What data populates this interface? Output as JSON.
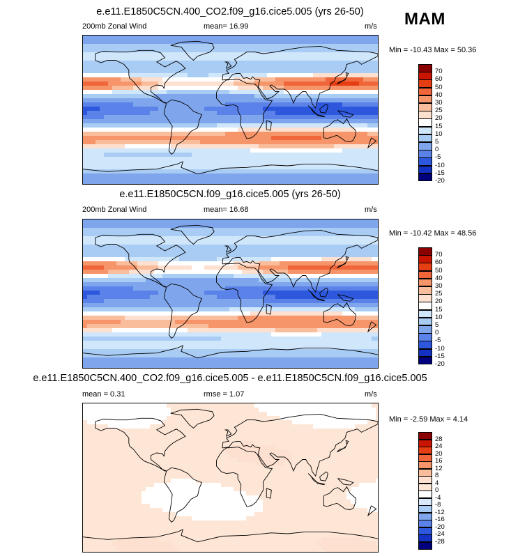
{
  "season": "MAM",
  "panels": [
    {
      "title": "e.e11.E1850C5CN.400_CO2.f09_g16.cice5.005 (yrs 26-50)",
      "left_label": "200mb Zonal Wind",
      "mid_label": "mean=  16.99",
      "units": "m/s",
      "minmax": "Min = -10.43 Max =  50.36",
      "levels": [
        "70",
        "60",
        "50",
        "40",
        "30",
        "25",
        "20",
        "15",
        "10",
        "5",
        "0",
        "-5",
        "-10",
        "-15",
        "-20"
      ],
      "colors": [
        "#8b0000",
        "#c91400",
        "#e53e12",
        "#f0663a",
        "#f6946a",
        "#fabd9c",
        "#fde0cf",
        "#ffffff",
        "#cfe6fb",
        "#a9ccf4",
        "#7fa6ec",
        "#5a82e8",
        "#2d58de",
        "#1332c4",
        "#00007f"
      ],
      "field": "base_co2"
    },
    {
      "title": "e.e11.E1850C5CN.f09_g16.cice5.005 (yrs 26-50)",
      "left_label": "200mb Zonal Wind",
      "mid_label": "mean=  16.68",
      "units": "m/s",
      "minmax": "Min = -10.42 Max =  48.56",
      "levels": [
        "70",
        "60",
        "50",
        "40",
        "30",
        "25",
        "20",
        "15",
        "10",
        "5",
        "0",
        "-5",
        "-10",
        "-15",
        "-20"
      ],
      "colors": [
        "#8b0000",
        "#c91400",
        "#e53e12",
        "#f0663a",
        "#f6946a",
        "#fabd9c",
        "#fde0cf",
        "#ffffff",
        "#cfe6fb",
        "#a9ccf4",
        "#7fa6ec",
        "#5a82e8",
        "#2d58de",
        "#1332c4",
        "#00007f"
      ],
      "field": "base_ctl"
    },
    {
      "title": "e.e11.E1850C5CN.400_CO2.f09_g16.cice5.005 - e.e11.E1850C5CN.f09_g16.cice5.005",
      "left_label": "mean =   0.31",
      "mid_label": "rmse =   1.07",
      "units": "m/s",
      "minmax": "Min =  -2.59 Max =   4.14",
      "levels": [
        "28",
        "24",
        "20",
        "16",
        "12",
        "8",
        "4",
        "0",
        "-4",
        "-8",
        "-12",
        "-16",
        "-20",
        "-24",
        "-28"
      ],
      "colors": [
        "#8b0000",
        "#c91400",
        "#e53e12",
        "#f0663a",
        "#f6946a",
        "#fabd9c",
        "#fde0cf",
        "#fde6d6",
        "#ffffff",
        "#d7e9fb",
        "#a9ccf4",
        "#7fa6ec",
        "#5a82e8",
        "#2d58de",
        "#1332c4",
        "#00007f"
      ],
      "field": "diff"
    }
  ]
}
